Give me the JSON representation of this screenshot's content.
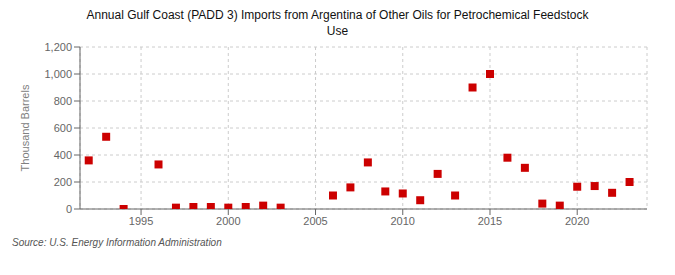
{
  "chart_data": {
    "type": "scatter",
    "title": "Annual Gulf Coast (PADD 3) Imports from Argentina of Other Oils for Petrochemical Feedstock\nUse",
    "y_label": "Thousand Barrels",
    "annotations": [
      "Source: U.S. Energy Information Administration"
    ],
    "x": [
      1992,
      1993,
      1994,
      1996,
      1997,
      1998,
      1999,
      2000,
      2001,
      2002,
      2003,
      2006,
      2007,
      2008,
      2009,
      2010,
      2011,
      2012,
      2013,
      2014,
      2015,
      2016,
      2017,
      2018,
      2019,
      2020,
      2021,
      2022,
      2023
    ],
    "values": [
      360,
      535,
      0,
      330,
      10,
      15,
      15,
      10,
      15,
      25,
      10,
      100,
      160,
      345,
      130,
      115,
      65,
      260,
      100,
      900,
      1000,
      380,
      305,
      40,
      25,
      165,
      170,
      120,
      200
    ],
    "color": "#cc0000",
    "marker": "square",
    "xlim": [
      1991.5,
      2024
    ],
    "xticks": [
      1995,
      2000,
      2005,
      2010,
      2015,
      2020
    ],
    "ylim": [
      0,
      1200
    ],
    "yticks": [
      0,
      200,
      400,
      600,
      800,
      {
        "value": 1000,
        "label": "1,000"
      },
      {
        "value": 1200,
        "label": "1,200"
      }
    ],
    "grid": true
  }
}
